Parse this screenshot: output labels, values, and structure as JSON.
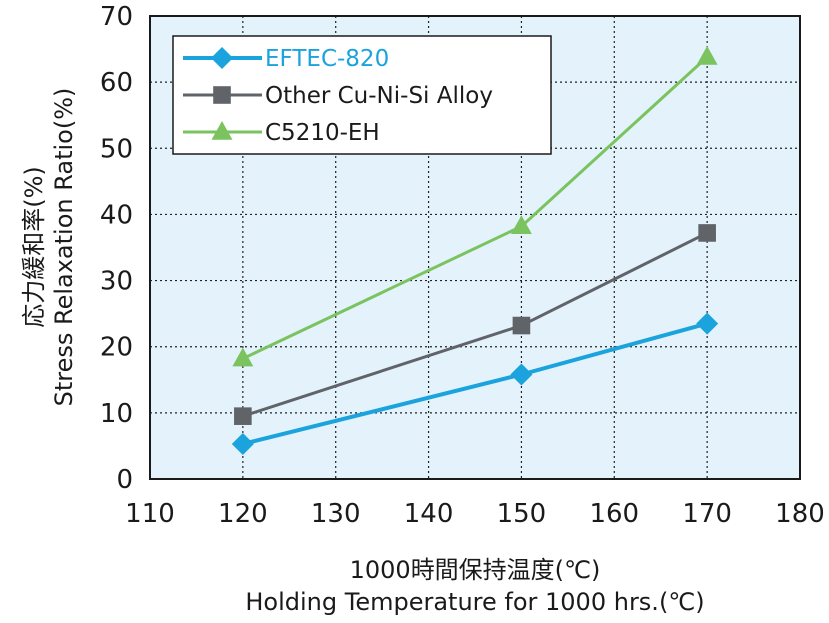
{
  "chart_data": {
    "type": "line",
    "x": [
      120,
      150,
      170
    ],
    "xlim": [
      110,
      180
    ],
    "ylim": [
      0,
      70
    ],
    "xticks": [
      "110",
      "120",
      "130",
      "140",
      "150",
      "160",
      "170",
      "180"
    ],
    "yticks": [
      "0",
      "10",
      "20",
      "30",
      "40",
      "50",
      "60",
      "70"
    ],
    "xlabel_line1": "1000時間保持温度(℃)",
    "xlabel_line2": "Holding Temperature for 1000 hrs.(℃)",
    "ylabel_line1": "応力緩和率(%)",
    "ylabel_line2": "Stress Relaxation Ratio(%)",
    "grid": true,
    "legend_position": "top-left",
    "plot_background": "#e3f2fb",
    "series": [
      {
        "name": "EFTEC-820",
        "values": [
          5.3,
          15.8,
          23.5
        ],
        "color": "#1aa3dc",
        "marker": "diamond"
      },
      {
        "name": "Other Cu-Ni-Si Alloy",
        "values": [
          9.5,
          23.2,
          37.2
        ],
        "color": "#606368",
        "marker": "square"
      },
      {
        "name": "C5210-EH",
        "values": [
          18.2,
          38.2,
          63.8
        ],
        "color": "#7ac35f",
        "marker": "triangle"
      }
    ]
  }
}
